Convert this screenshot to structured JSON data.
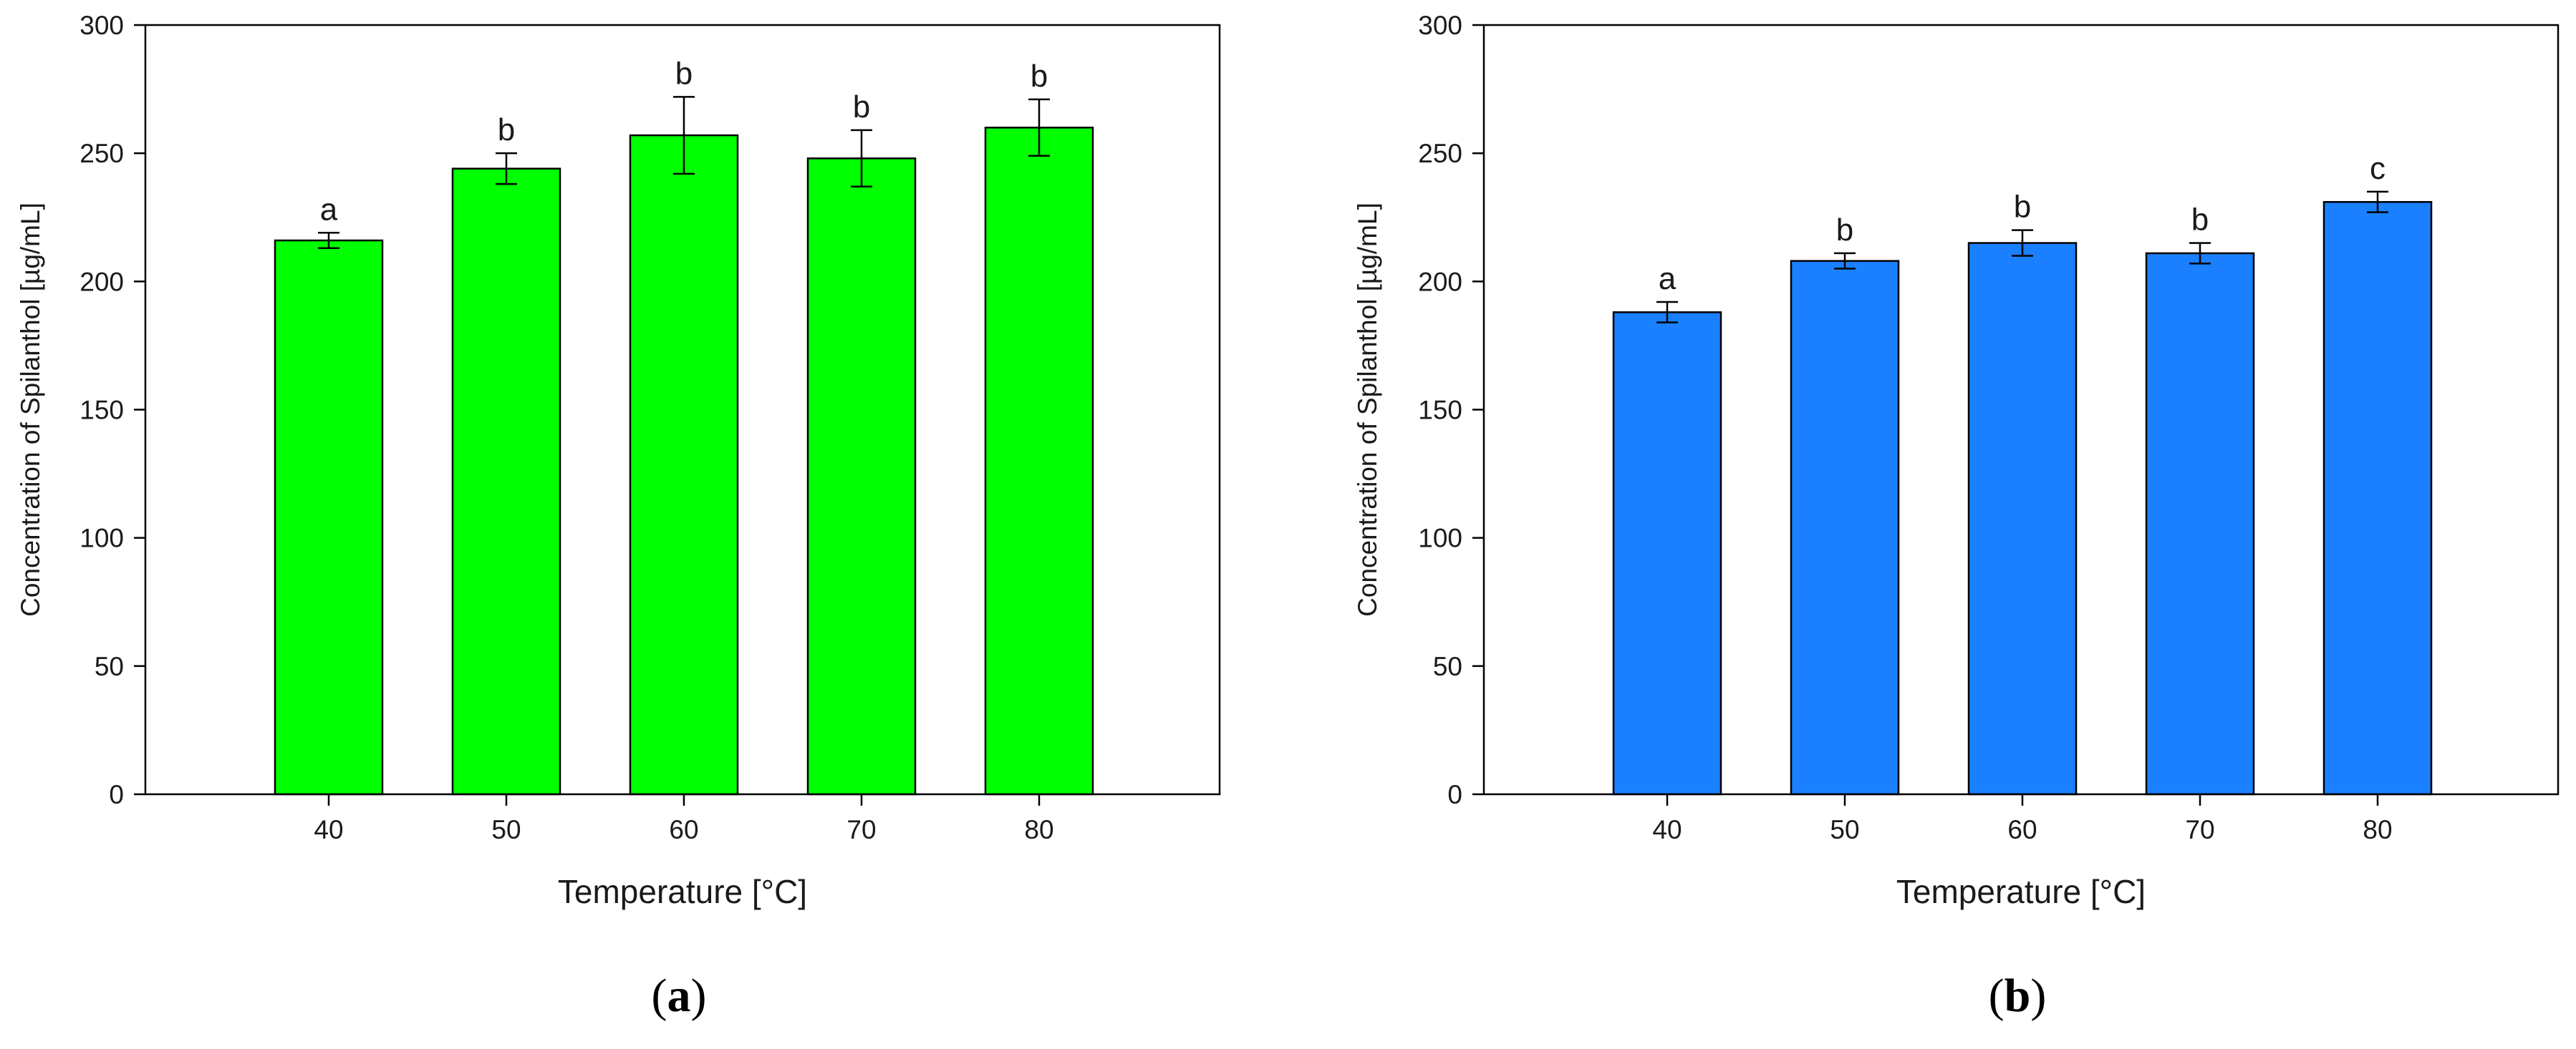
{
  "chart_data": [
    {
      "type": "bar",
      "panel_label": "a",
      "categories": [
        "40",
        "50",
        "60",
        "70",
        "80"
      ],
      "values": [
        216,
        244,
        257,
        248,
        260
      ],
      "errors": [
        3,
        6,
        15,
        11,
        11
      ],
      "significance": [
        "a",
        "b",
        "b",
        "b",
        "b"
      ],
      "xlabel": "Temperature [°C]",
      "ylabel": "Concentration of Spilanthol [µg/mL]",
      "ylim": [
        0,
        300
      ],
      "yticks": [
        0,
        50,
        100,
        150,
        200,
        250,
        300
      ],
      "bar_color": "#00ff00",
      "grid": false
    },
    {
      "type": "bar",
      "panel_label": "b",
      "categories": [
        "40",
        "50",
        "60",
        "70",
        "80"
      ],
      "values": [
        188,
        208,
        215,
        211,
        231
      ],
      "errors": [
        4,
        3,
        5,
        4,
        4
      ],
      "significance": [
        "a",
        "b",
        "b",
        "b",
        "c"
      ],
      "xlabel": "Temperature [°C]",
      "ylabel": "Concentration of Spilanthol [µg/mL]",
      "ylim": [
        0,
        300
      ],
      "yticks": [
        0,
        50,
        100,
        150,
        200,
        250,
        300
      ],
      "bar_color": "#1a80ff",
      "grid": false
    }
  ]
}
